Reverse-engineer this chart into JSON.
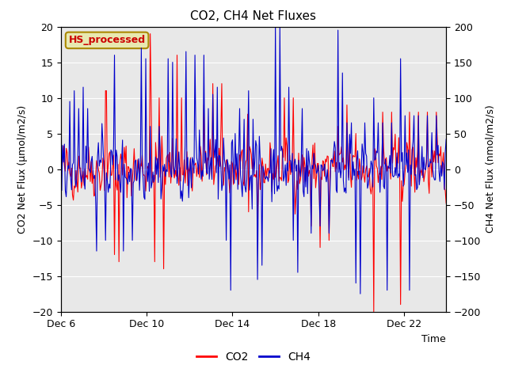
{
  "title": "CO2, CH4 Net Fluxes",
  "xlabel": "Time",
  "ylabel_left": "CO2 Net Flux (μmol/m2/s)",
  "ylabel_right": "CH4 Net Flux (nmol/m2/s)",
  "ylim_left": [
    -20,
    20
  ],
  "ylim_right": [
    -200,
    200
  ],
  "yticks_left": [
    -20,
    -15,
    -10,
    -5,
    0,
    5,
    10,
    15,
    20
  ],
  "yticks_right": [
    -200,
    -150,
    -100,
    -50,
    0,
    50,
    100,
    150,
    200
  ],
  "xtick_labels": [
    "Dec 6",
    "Dec 10",
    "Dec 14",
    "Dec 18",
    "Dec 22"
  ],
  "xtick_positions": [
    0,
    96,
    192,
    288,
    384
  ],
  "annotation_text": "HS_processed",
  "annotation_color": "#cc0000",
  "annotation_bg": "#e8e8b0",
  "annotation_border": "#aa8800",
  "co2_color": "#ff0000",
  "ch4_color": "#0000cc",
  "legend_co2": "CO2",
  "legend_ch4": "CH4",
  "fig_bg_color": "#ffffff",
  "plot_bg_color": "#e8e8e8",
  "n_points": 432,
  "seed": 42
}
